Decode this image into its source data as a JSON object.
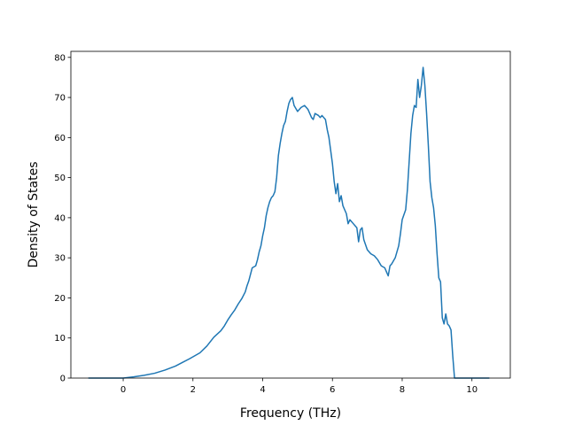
{
  "chart_data": {
    "type": "line",
    "title": "",
    "xlabel": "Frequency (THz)",
    "ylabel": "Density of States",
    "xlim": [
      -1.5,
      11.1
    ],
    "ylim": [
      0,
      81.5
    ],
    "xticks": [
      0,
      2,
      4,
      6,
      8,
      10
    ],
    "yticks": [
      0,
      10,
      20,
      30,
      40,
      50,
      60,
      70,
      80
    ],
    "grid": false,
    "legend": "none",
    "color": "#1f77b4",
    "series": [
      {
        "x": [
          -1.0,
          -0.5,
          0.0,
          0.3,
          0.6,
          0.9,
          1.2,
          1.5,
          1.7,
          1.9,
          2.0,
          2.2,
          2.4,
          2.6,
          2.8,
          2.9,
          3.0,
          3.1,
          3.2,
          3.3,
          3.4,
          3.5,
          3.55,
          3.6,
          3.7,
          3.8,
          3.85,
          3.9,
          3.95,
          4.0,
          4.05,
          4.1,
          4.15,
          4.2,
          4.25,
          4.3,
          4.35,
          4.4,
          4.45,
          4.5,
          4.55,
          4.6,
          4.65,
          4.7,
          4.75,
          4.8,
          4.85,
          4.9,
          5.0,
          5.1,
          5.2,
          5.3,
          5.35,
          5.4,
          5.45,
          5.5,
          5.6,
          5.65,
          5.7,
          5.8,
          5.85,
          5.9,
          6.0,
          6.05,
          6.1,
          6.15,
          6.2,
          6.25,
          6.3,
          6.4,
          6.45,
          6.5,
          6.6,
          6.7,
          6.75,
          6.8,
          6.85,
          6.9,
          7.0,
          7.1,
          7.2,
          7.3,
          7.4,
          7.5,
          7.55,
          7.6,
          7.65,
          7.7,
          7.8,
          7.9,
          7.95,
          8.0,
          8.1,
          8.15,
          8.2,
          8.25,
          8.3,
          8.35,
          8.4,
          8.45,
          8.5,
          8.55,
          8.6,
          8.65,
          8.7,
          8.75,
          8.8,
          8.85,
          8.9,
          8.95,
          9.0,
          9.05,
          9.1,
          9.15,
          9.2,
          9.25,
          9.3,
          9.35,
          9.4,
          9.45,
          9.5,
          9.55,
          9.6,
          9.65,
          9.8,
          10.0,
          10.2,
          10.5
        ],
        "y": [
          0,
          0,
          0,
          0.3,
          0.7,
          1.2,
          2.0,
          3.0,
          3.9,
          4.8,
          5.3,
          6.3,
          8.0,
          10.2,
          11.8,
          13.0,
          14.5,
          15.8,
          17.0,
          18.5,
          19.8,
          21.5,
          23.0,
          24.2,
          27.5,
          28.0,
          29.5,
          31.5,
          33.0,
          35.5,
          37.5,
          40.5,
          42.5,
          44.0,
          45.0,
          45.5,
          46.5,
          50.0,
          55.5,
          58.5,
          61.0,
          63.0,
          64.0,
          66.5,
          68.5,
          69.5,
          70.0,
          68.0,
          66.5,
          67.5,
          68.0,
          67.0,
          66.0,
          65.0,
          64.5,
          66.0,
          65.5,
          65.0,
          65.5,
          64.5,
          62.0,
          60.0,
          53.5,
          49.0,
          46.0,
          48.5,
          44.0,
          45.5,
          43.0,
          41.0,
          38.5,
          39.5,
          38.5,
          37.5,
          34.0,
          37.0,
          37.5,
          34.5,
          32.0,
          31.0,
          30.5,
          29.5,
          28.0,
          27.5,
          26.5,
          25.5,
          28.0,
          28.5,
          30.0,
          33.0,
          36.0,
          39.5,
          42.0,
          47.0,
          54.0,
          61.0,
          65.5,
          68.0,
          67.5,
          74.5,
          70.0,
          73.0,
          77.5,
          73.0,
          66.0,
          58.0,
          49.0,
          45.0,
          42.5,
          38.0,
          31.0,
          25.0,
          24.0,
          15.0,
          13.5,
          16.0,
          13.5,
          13.0,
          12.0,
          5.5,
          0,
          0,
          0,
          0,
          0,
          0,
          0,
          0
        ]
      }
    ]
  }
}
